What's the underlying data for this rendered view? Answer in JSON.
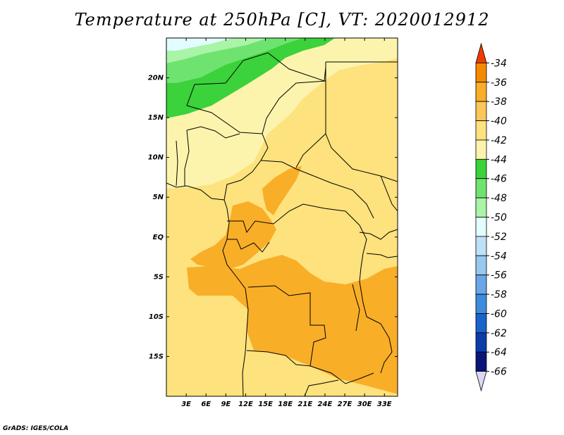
{
  "title": "Temperature at 250hPa [C], VT: 2020012912",
  "credit": "GrADS: IGES/COLA",
  "map": {
    "lon_range": [
      0,
      35
    ],
    "lat_range": [
      -20,
      25
    ],
    "lat_labels": [
      {
        "lat": 20,
        "label": "20N"
      },
      {
        "lat": 15,
        "label": "15N"
      },
      {
        "lat": 10,
        "label": "10N"
      },
      {
        "lat": 5,
        "label": "5N"
      },
      {
        "lat": 0,
        "label": "EQ"
      },
      {
        "lat": -5,
        "label": "5S"
      },
      {
        "lat": -10,
        "label": "10S"
      },
      {
        "lat": -15,
        "label": "15S"
      }
    ],
    "lon_labels": [
      {
        "lon": 3,
        "label": "3E"
      },
      {
        "lon": 6,
        "label": "6E"
      },
      {
        "lon": 9,
        "label": "9E"
      },
      {
        "lon": 12,
        "label": "12E"
      },
      {
        "lon": 15,
        "label": "15E"
      },
      {
        "lon": 18,
        "label": "18E"
      },
      {
        "lon": 21,
        "label": "21E"
      },
      {
        "lon": 24,
        "label": "24E"
      },
      {
        "lon": 27,
        "label": "27E"
      },
      {
        "lon": 30,
        "label": "30E"
      },
      {
        "lon": 33,
        "label": "33E"
      }
    ]
  },
  "colorbar": {
    "labels": [
      "-34",
      "-36",
      "-38",
      "-40",
      "-42",
      "-44",
      "-46",
      "-48",
      "-50",
      "-52",
      "-54",
      "-56",
      "-58",
      "-60",
      "-62",
      "-64",
      "-66"
    ],
    "colors": [
      "#f03c00",
      "#f58a00",
      "#f9ae28",
      "#fbc65a",
      "#fde27d",
      "#fcf4ac",
      "#3bd23b",
      "#6fe36f",
      "#a9f4a7",
      "#e2fdfd",
      "#bde1f7",
      "#98c8ee",
      "#6aa6e8",
      "#3d8bdc",
      "#1a63cb",
      "#0c3ca8",
      "#0a1578",
      "#dbd7f5"
    ]
  }
}
